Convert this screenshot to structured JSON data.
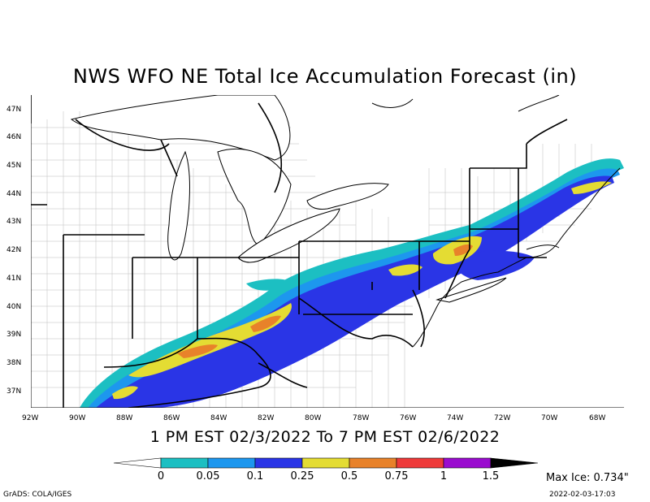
{
  "title": "NWS WFO NE Total Ice Accumulation Forecast (in)",
  "period": "1 PM EST 02/3/2022 To 7 PM EST 02/6/2022",
  "axes": {
    "latitudes": [
      "47N",
      "46N",
      "45N",
      "44N",
      "43N",
      "42N",
      "41N",
      "40N",
      "39N",
      "38N",
      "37N"
    ],
    "longitudes": [
      "92W",
      "90W",
      "88W",
      "86W",
      "84W",
      "82W",
      "80W",
      "78W",
      "76W",
      "74W",
      "72W",
      "70W",
      "68W"
    ]
  },
  "legend": {
    "thresholds": [
      "0",
      "0.05",
      "0.1",
      "0.25",
      "0.5",
      "0.75",
      "1",
      "1.5"
    ],
    "colors": [
      "#ffffff",
      "#1cbfc2",
      "#1d97ee",
      "#2a35e6",
      "#e4dc33",
      "#e8822a",
      "#ee3a3a",
      "#9a0ccf",
      "#000000"
    ]
  },
  "max_ice": "Max Ice: 0.734\"",
  "credit": "GrADS: COLA/IGES",
  "timestamp": "2022-02-03-17:03"
}
